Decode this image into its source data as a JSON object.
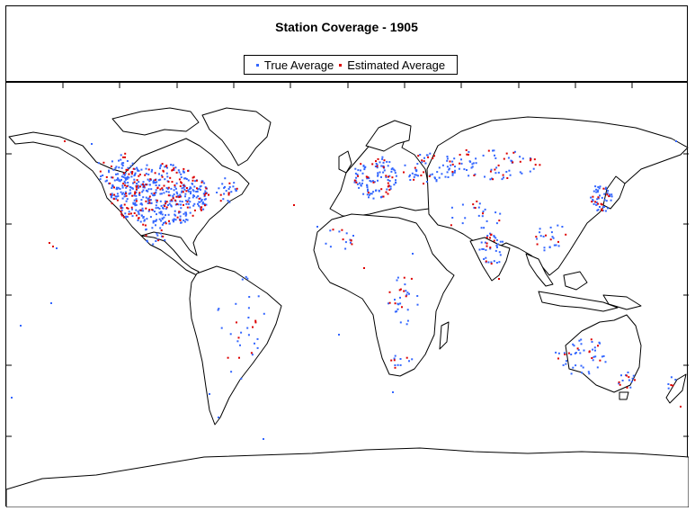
{
  "title": "Station Coverage - 1905",
  "legend": {
    "true_label": "True Average",
    "estimated_label": "Estimated Average"
  },
  "colors": {
    "true": "#3366ff",
    "estimated": "#dd0000",
    "coast": "#000000"
  },
  "chart_data": {
    "type": "scatter",
    "title": "Station Coverage - 1905",
    "xlim": [
      -180,
      180
    ],
    "ylim": [
      -90,
      90
    ],
    "series": [
      {
        "name": "True Average",
        "color": "#3366ff"
      },
      {
        "name": "Estimated Average",
        "color": "#dd0000"
      }
    ]
  }
}
